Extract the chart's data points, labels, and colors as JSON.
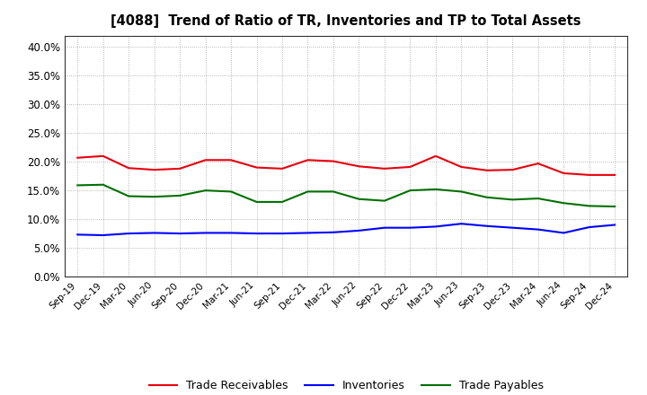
{
  "title": "[4088]  Trend of Ratio of TR, Inventories and TP to Total Assets",
  "x_labels": [
    "Sep-19",
    "Dec-19",
    "Mar-20",
    "Jun-20",
    "Sep-20",
    "Dec-20",
    "Mar-21",
    "Jun-21",
    "Sep-21",
    "Dec-21",
    "Mar-22",
    "Jun-22",
    "Sep-22",
    "Dec-22",
    "Mar-23",
    "Jun-23",
    "Sep-23",
    "Dec-23",
    "Mar-24",
    "Jun-24",
    "Sep-24",
    "Dec-24"
  ],
  "trade_receivables": [
    0.207,
    0.21,
    0.189,
    0.186,
    0.188,
    0.203,
    0.203,
    0.19,
    0.188,
    0.203,
    0.201,
    0.192,
    0.188,
    0.191,
    0.21,
    0.191,
    0.185,
    0.186,
    0.197,
    0.18,
    0.177,
    0.177
  ],
  "inventories": [
    0.073,
    0.072,
    0.075,
    0.076,
    0.075,
    0.076,
    0.076,
    0.075,
    0.075,
    0.076,
    0.077,
    0.08,
    0.085,
    0.085,
    0.087,
    0.092,
    0.088,
    0.085,
    0.082,
    0.076,
    0.086,
    0.09
  ],
  "trade_payables": [
    0.159,
    0.16,
    0.14,
    0.139,
    0.141,
    0.15,
    0.148,
    0.13,
    0.13,
    0.148,
    0.148,
    0.135,
    0.132,
    0.15,
    0.152,
    0.148,
    0.138,
    0.134,
    0.136,
    0.128,
    0.123,
    0.122
  ],
  "tr_color": "#e8000d",
  "inv_color": "#0000ff",
  "tp_color": "#007000",
  "ylim": [
    0.0,
    0.42
  ],
  "yticks": [
    0.0,
    0.05,
    0.1,
    0.15,
    0.2,
    0.25,
    0.3,
    0.35,
    0.4
  ],
  "background_color": "#ffffff",
  "grid_color": "#999999",
  "legend_labels": [
    "Trade Receivables",
    "Inventories",
    "Trade Payables"
  ],
  "figsize": [
    7.2,
    4.4
  ],
  "dpi": 100
}
